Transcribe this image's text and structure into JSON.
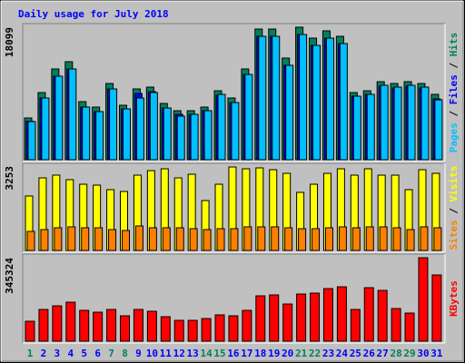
{
  "chart_data": [
    {
      "type": "bar",
      "title": "Daily usage for July 2018",
      "ylim": [
        0,
        18099
      ],
      "yticks": [
        18099
      ],
      "series": [
        {
          "name": "Hits",
          "color": "#00805c",
          "values": [
            5702,
            9174,
            12397,
            13388,
            7934,
            7190,
            10413,
            7438,
            9669,
            9917,
            7686,
            6694,
            6694,
            7190,
            9421,
            8430,
            12397,
            17851,
            17851,
            13884,
            18099,
            16611,
            17603,
            16859,
            9174,
            9421,
            10661,
            10413,
            10661,
            10413,
            8925
          ]
        },
        {
          "name": "Files",
          "color": "#0000ff",
          "values": [
            5250,
            8430,
            11400,
            12400,
            7200,
            6570,
            9670,
            6940,
            9050,
            9300,
            7060,
            6200,
            6200,
            6700,
            8800,
            7800,
            11650,
            16860,
            16860,
            12900,
            17100,
            15620,
            16600,
            15870,
            8680,
            8920,
            10050,
            9800,
            10050,
            9800,
            8300
          ]
        },
        {
          "name": "Pages",
          "color": "#00c0ff",
          "values": [
            5206,
            8430,
            11405,
            12397,
            7190,
            6570,
            9669,
            6942,
            8430,
            9174,
            7066,
            5950,
            6198,
            6694,
            8925,
            7810,
            11653,
            16859,
            16859,
            12893,
            17107,
            15619,
            16611,
            15867,
            8678,
            8925,
            10165,
            9917,
            10165,
            9917,
            8182
          ]
        }
      ]
    },
    {
      "type": "bar",
      "ylim": [
        0,
        3253
      ],
      "yticks": [
        3253
      ],
      "series": [
        {
          "name": "Visits",
          "color": "#ffff00",
          "values": [
            2099,
            2798,
            2903,
            2728,
            2553,
            2518,
            2344,
            2274,
            2903,
            3078,
            3148,
            2798,
            2938,
            1924,
            2553,
            3218,
            3148,
            3183,
            3113,
            2973,
            2239,
            2553,
            2973,
            3148,
            2903,
            3148,
            2903,
            2903,
            2344,
            3113,
            2973
          ]
        },
        {
          "name": "Sites",
          "color": "#ff8000",
          "values": [
            735,
            805,
            875,
            910,
            875,
            875,
            805,
            770,
            945,
            875,
            875,
            875,
            840,
            805,
            840,
            840,
            910,
            910,
            910,
            875,
            840,
            840,
            875,
            910,
            875,
            910,
            910,
            875,
            805,
            910,
            875
          ]
        }
      ]
    },
    {
      "type": "bar",
      "ylim": [
        0,
        345324
      ],
      "yticks": [
        345324
      ],
      "categories": [
        "1",
        "2",
        "3",
        "4",
        "5",
        "6",
        "7",
        "8",
        "9",
        "10",
        "11",
        "12",
        "13",
        "14",
        "15",
        "16",
        "17",
        "18",
        "19",
        "20",
        "21",
        "22",
        "23",
        "24",
        "25",
        "26",
        "27",
        "28",
        "29",
        "30",
        "31"
      ],
      "category_colors": [
        "#00805c",
        "#0000ff",
        "#0000ff",
        "#0000ff",
        "#0000ff",
        "#0000ff",
        "#00805c",
        "#00805c",
        "#0000ff",
        "#0000ff",
        "#0000ff",
        "#0000ff",
        "#0000ff",
        "#00805c",
        "#00805c",
        "#0000ff",
        "#0000ff",
        "#0000ff",
        "#0000ff",
        "#0000ff",
        "#00805c",
        "#00805c",
        "#0000ff",
        "#0000ff",
        "#0000ff",
        "#0000ff",
        "#0000ff",
        "#00805c",
        "#00805c",
        "#0000ff",
        "#0000ff"
      ],
      "series": [
        {
          "name": "KBytes",
          "color": "#ff0000",
          "values": [
            82578,
            131372,
            146387,
            161400,
            127618,
            120113,
            131372,
            105098,
            131372,
            123866,
            101344,
            86331,
            86331,
            93838,
            108849,
            105098,
            127618,
            187676,
            191430,
            153894,
            195183,
            198936,
            217704,
            225210,
            131372,
            221456,
            210197,
            135125,
            116359,
            345324,
            274007
          ]
        }
      ]
    }
  ]
}
